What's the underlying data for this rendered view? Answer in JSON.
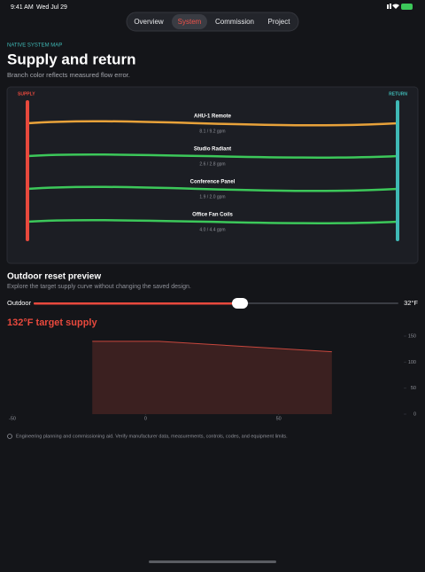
{
  "status_bar": {
    "time": "9:41 AM",
    "date": "Wed Jul 29"
  },
  "tabs": {
    "items": [
      "Overview",
      "System",
      "Commission",
      "Project"
    ],
    "active": 1
  },
  "header": {
    "eyebrow": "NATIVE SYSTEM MAP",
    "title": "Supply and return",
    "subtitle": "Branch color reflects measured flow error."
  },
  "system_map": {
    "supply_label": "SUPPLY",
    "return_label": "RETURN",
    "branches": [
      {
        "name": "AHU-1 Remote",
        "flow": "8.1 / 9.2 gpm",
        "color": "#e8a23a"
      },
      {
        "name": "Studio Radiant",
        "flow": "2.6 / 2.8 gpm",
        "color": "#3cc85a"
      },
      {
        "name": "Conference Panel",
        "flow": "1.9 / 2.0 gpm",
        "color": "#3cc85a"
      },
      {
        "name": "Office Fan Coils",
        "flow": "4.0 / 4.4 gpm",
        "color": "#3cc85a"
      }
    ]
  },
  "reset": {
    "title": "Outdoor reset preview",
    "description": "Explore the target supply curve without changing the saved design.",
    "slider_label": "Outdoor",
    "slider_value": "32°F",
    "target": "132°F target supply"
  },
  "chart_data": {
    "type": "area",
    "x": [
      -20,
      5,
      70
    ],
    "values": [
      140,
      140,
      120
    ],
    "color": "#c8473d",
    "xlim": [
      -52,
      95
    ],
    "ylim": [
      0,
      150
    ],
    "xticks": [
      -50,
      0,
      50
    ],
    "yticks": [
      0,
      50,
      100,
      150
    ]
  },
  "footer": {
    "note": "Engineering planning and commissioning aid. Verify manufacturer data, measurements, controls, codes, and equipment limits."
  }
}
